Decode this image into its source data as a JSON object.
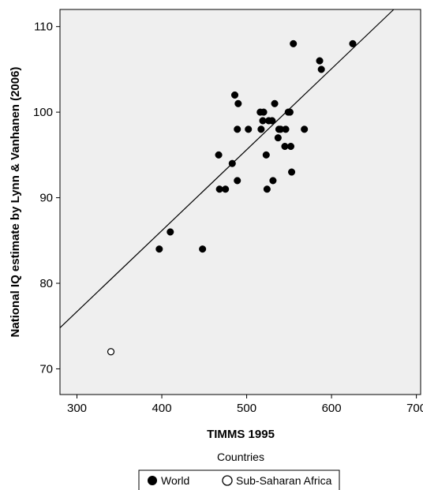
{
  "chart_data": {
    "type": "scatter",
    "title": "",
    "xlabel": "TIMMS 1995",
    "ylabel": "National IQ estimate by Lynn & Vanhanen (2006)",
    "xlim": [
      280,
      705
    ],
    "ylim": [
      67,
      112
    ],
    "xticks": [
      300,
      400,
      500,
      600,
      700
    ],
    "yticks": [
      70,
      80,
      90,
      100,
      110
    ],
    "grid": false,
    "background": "#efefef",
    "legend": {
      "position": "bottom",
      "title": "Countries",
      "entries": [
        "World",
        "Sub-Saharan Africa"
      ]
    },
    "series": [
      {
        "name": "World",
        "marker": "filled-circle",
        "points": [
          [
            397,
            84
          ],
          [
            410,
            86
          ],
          [
            448,
            84
          ],
          [
            467,
            95
          ],
          [
            468,
            91
          ],
          [
            475,
            91
          ],
          [
            483,
            94
          ],
          [
            486,
            102
          ],
          [
            489,
            98
          ],
          [
            489,
            92
          ],
          [
            490,
            101
          ],
          [
            502,
            98
          ],
          [
            516,
            100
          ],
          [
            517,
            98
          ],
          [
            519,
            99
          ],
          [
            520,
            100
          ],
          [
            523,
            95
          ],
          [
            524,
            91
          ],
          [
            526,
            99
          ],
          [
            530,
            99
          ],
          [
            531,
            92
          ],
          [
            533,
            101
          ],
          [
            537,
            97
          ],
          [
            538,
            98
          ],
          [
            540,
            98
          ],
          [
            545,
            96
          ],
          [
            546,
            98
          ],
          [
            549,
            100
          ],
          [
            551,
            100
          ],
          [
            552,
            96
          ],
          [
            553,
            93
          ],
          [
            555,
            108
          ],
          [
            568,
            98
          ],
          [
            586,
            106
          ],
          [
            588,
            105
          ],
          [
            625,
            108
          ]
        ]
      },
      {
        "name": "Sub-Saharan Africa",
        "marker": "open-circle",
        "points": [
          [
            340,
            72
          ]
        ]
      }
    ],
    "fit_line": {
      "x": [
        280,
        705
      ],
      "y": [
        74.8,
        115.0
      ]
    }
  }
}
